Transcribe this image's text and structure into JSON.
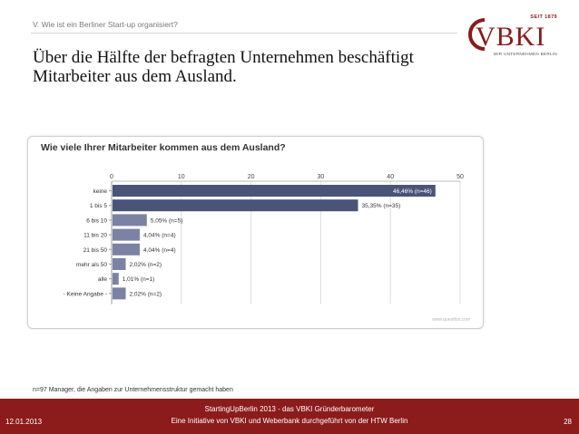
{
  "header": {
    "section_label": "V. Wie ist ein Berliner Start-up organisiert?",
    "logo": {
      "since": "SEIT 1879",
      "wordmark": "VBKI",
      "tagline": "WIR UNTERNEHMEN BERLIN"
    }
  },
  "headline": {
    "line1": "Über die Hälfte der befragten Unternehmen beschäftigt",
    "line2": "Mitarbeiter aus dem Ausland."
  },
  "chart_data": {
    "type": "bar",
    "orientation": "horizontal",
    "title": "Wie viele Ihrer Mitarbeiter kommen aus dem Ausland?",
    "categories": [
      "keine",
      "1 bis 5",
      "6 bis 10",
      "11 bis 20",
      "21 bis 50",
      "mehr als 50",
      "alle",
      "- Keine Angabe -"
    ],
    "values": [
      46.46,
      35.35,
      5.05,
      4.04,
      4.04,
      2.02,
      1.01,
      2.02
    ],
    "data_labels": [
      "46,46% (n=46)",
      "35,35% (n=35)",
      "5,05% (n=5)",
      "4,04% (n=4)",
      "4,04% (n=4)",
      "2,02% (n=2)",
      "1,01% (n=1)",
      "2,02% (n=2)"
    ],
    "xticks": [
      "0",
      "10",
      "20",
      "30",
      "40",
      "50"
    ],
    "xlim": [
      0,
      50
    ],
    "grid": true,
    "colors": {
      "bar_dark": "#4a5478",
      "bar_light": "#7b82a3"
    },
    "source": "www.questfox.com"
  },
  "footnote": "n=97 Manager, die Angaben zur Unternehmensstruktur gemacht haben",
  "footer": {
    "date": "12.01.2013",
    "line1": "StartingUpBerlin 2013 - das VBKI Gründerbarometer",
    "line2": "Eine Initiative von VBKI und Weberbank durchgeführt von der HTW Berlin",
    "page": "28",
    "color": "#8c1b1b"
  }
}
